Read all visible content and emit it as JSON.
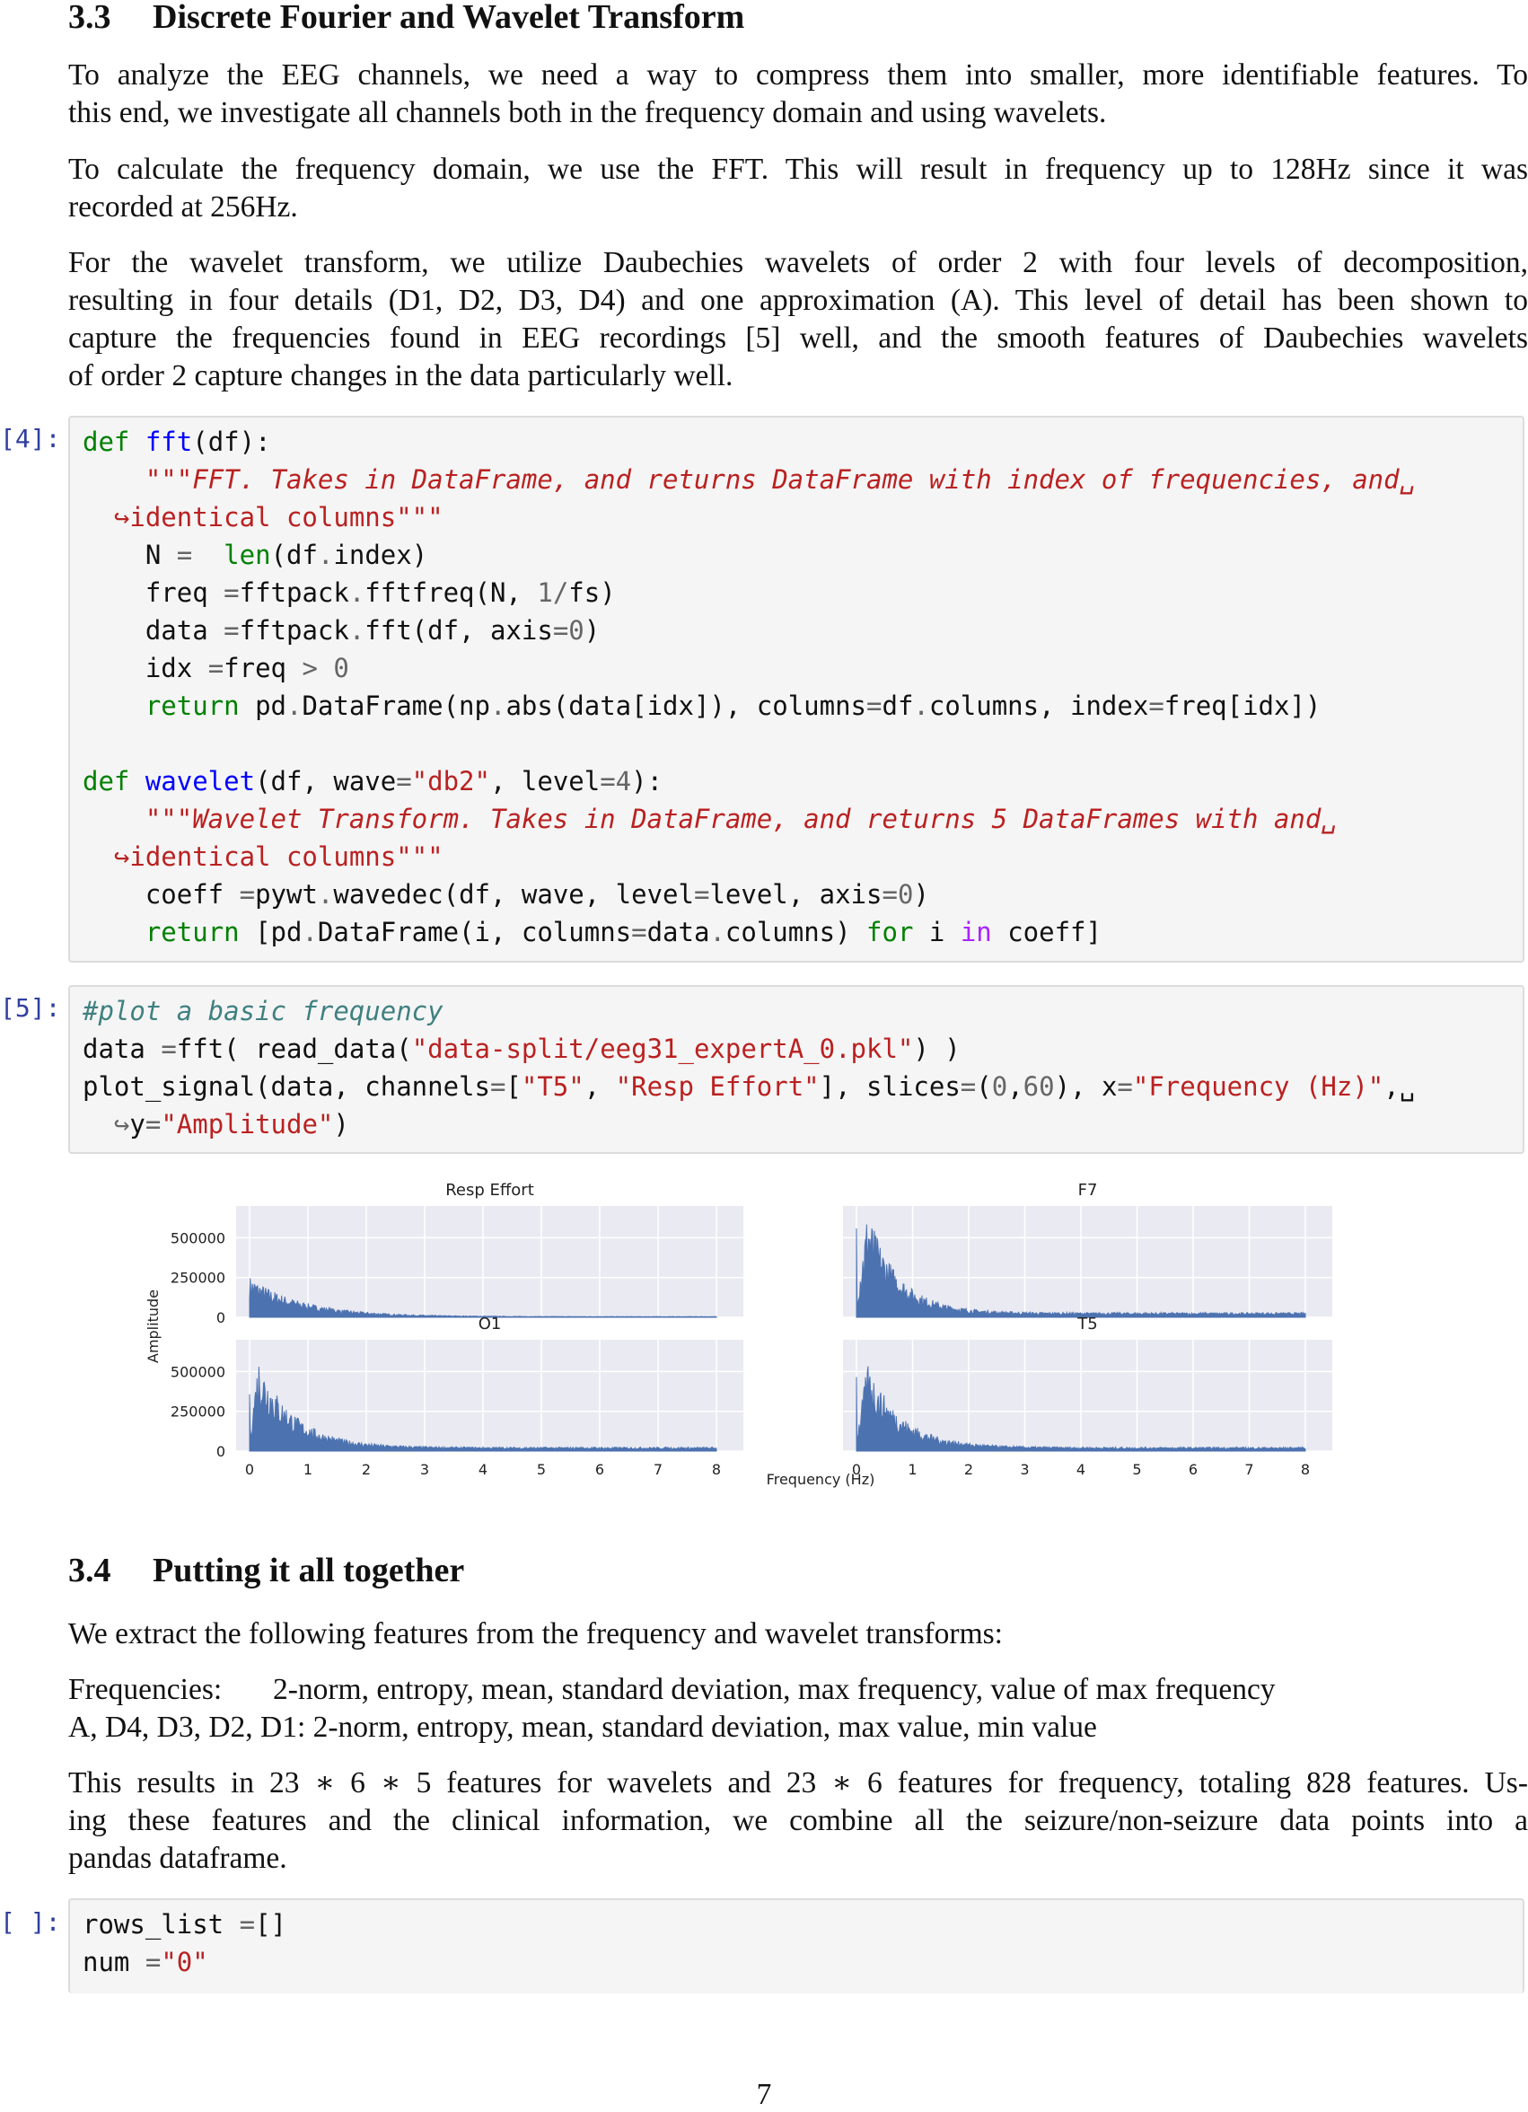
{
  "section_33": {
    "num": "3.3",
    "title": "Discrete Fourier and Wavelet Transform"
  },
  "p1": [
    "To analyze the EEG channels, we need a way to compress them into smaller, more identifiable features. To",
    "this end, we investigate all channels both in the frequency domain and using wavelets."
  ],
  "p2": [
    "To calculate the frequency domain, we use the FFT. This will result in frequency up to 128Hz since it was",
    "recorded at 256Hz."
  ],
  "p3": [
    "For the wavelet transform, we utilize Daubechies wavelets of order 2 with four levels of decomposition,",
    "resulting in four details (D1, D2, D3, D4) and one approximation (A). This level of detail has been shown to",
    "capture the frequencies found in EEG recordings [5] well, and the smooth features of Daubechies wavelets",
    "of order 2 capture changes in the data particularly well."
  ],
  "cell4": {
    "prompt": "[4]:",
    "lines": [
      [
        [
          "kw",
          "def "
        ],
        [
          "fn",
          "fft"
        ],
        [
          "",
          "(df):"
        ]
      ],
      [
        [
          "",
          "    "
        ],
        [
          "doc",
          "\"\"\"FFT. Takes in DataFrame, and returns DataFrame with index of frequencies, and␣"
        ]
      ],
      [
        [
          "",
          "  "
        ],
        [
          "cont",
          "↪identical columns\"\"\""
        ]
      ],
      [
        [
          "",
          "    N "
        ],
        [
          "op",
          "="
        ],
        [
          "",
          "  "
        ],
        [
          "nb",
          "len"
        ],
        [
          "",
          "(df"
        ],
        [
          "op",
          "."
        ],
        [
          "",
          "index)"
        ]
      ],
      [
        [
          "",
          "    freq "
        ],
        [
          "op",
          "="
        ],
        [
          "",
          ""
        ],
        [
          "",
          "fftpack"
        ],
        [
          "op",
          "."
        ],
        [
          "",
          "fftfreq(N, "
        ],
        [
          "numlit",
          "1"
        ],
        [
          "op",
          "/"
        ],
        [
          "",
          "fs)"
        ]
      ],
      [
        [
          "",
          "    data "
        ],
        [
          "op",
          "="
        ],
        [
          "",
          "fftpack"
        ],
        [
          "op",
          "."
        ],
        [
          "",
          "fft(df, axis"
        ],
        [
          "op",
          "="
        ],
        [
          "numlit",
          "0"
        ],
        [
          "",
          ")"
        ]
      ],
      [
        [
          "",
          "    idx "
        ],
        [
          "op",
          "="
        ],
        [
          "",
          ""
        ],
        [
          "",
          "freq "
        ],
        [
          "op",
          ">"
        ],
        [
          "",
          ""
        ],
        [
          "numlit",
          " 0"
        ]
      ],
      [
        [
          "",
          "    "
        ],
        [
          "kw",
          "return "
        ],
        [
          "",
          "pd"
        ],
        [
          "op",
          "."
        ],
        [
          "",
          "DataFrame(np"
        ],
        [
          "op",
          "."
        ],
        [
          "",
          "abs(data[idx]), columns"
        ],
        [
          "op",
          "="
        ],
        [
          "",
          "df"
        ],
        [
          "op",
          "."
        ],
        [
          "",
          "columns, index"
        ],
        [
          "op",
          "="
        ],
        [
          "",
          "freq[idx])"
        ]
      ],
      [
        [
          "",
          ""
        ]
      ],
      [
        [
          "kw",
          "def "
        ],
        [
          "fn",
          "wavelet"
        ],
        [
          "",
          "(df, wave"
        ],
        [
          "op",
          "="
        ],
        [
          "st",
          "\"db2\""
        ],
        [
          "",
          ", level"
        ],
        [
          "op",
          "="
        ],
        [
          "numlit",
          "4"
        ],
        [
          "",
          "):"
        ]
      ],
      [
        [
          "",
          "    "
        ],
        [
          "doc",
          "\"\"\"Wavelet Transform. Takes in DataFrame, and returns 5 DataFrames with and␣"
        ]
      ],
      [
        [
          "",
          "  "
        ],
        [
          "cont",
          "↪identical columns\"\"\""
        ]
      ],
      [
        [
          "",
          "    coeff "
        ],
        [
          "op",
          "="
        ],
        [
          "",
          "pywt"
        ],
        [
          "op",
          "."
        ],
        [
          "",
          "wavedec(df, wave, level"
        ],
        [
          "op",
          "="
        ],
        [
          "",
          "level, axis"
        ],
        [
          "op",
          "="
        ],
        [
          "numlit",
          "0"
        ],
        [
          "",
          ")"
        ]
      ],
      [
        [
          "",
          "    "
        ],
        [
          "kw",
          "return "
        ],
        [
          "",
          "[pd"
        ],
        [
          "op",
          "."
        ],
        [
          "",
          "DataFrame(i, columns"
        ],
        [
          "op",
          "="
        ],
        [
          "",
          "data"
        ],
        [
          "op",
          "."
        ],
        [
          "",
          "columns) "
        ],
        [
          "kw",
          "for "
        ],
        [
          "",
          "i "
        ],
        [
          "kw2",
          "in "
        ],
        [
          "",
          "coeff]"
        ]
      ]
    ]
  },
  "cell5": {
    "prompt": "[5]:",
    "lines": [
      [
        [
          "cm",
          "#plot a basic frequency"
        ]
      ],
      [
        [
          "",
          "data "
        ],
        [
          "op",
          "="
        ],
        [
          "",
          ""
        ],
        [
          "",
          "fft( read_data("
        ],
        [
          "st",
          "\"data-split/eeg31_expertA_0.pkl\""
        ],
        [
          "",
          ") )"
        ]
      ],
      [
        [
          "",
          "plot_signal(data, channels"
        ],
        [
          "op",
          "="
        ],
        [
          "",
          "["
        ],
        [
          "st",
          "\"T5\""
        ],
        [
          "",
          ", "
        ],
        [
          "st",
          "\"Resp Effort\""
        ],
        [
          "",
          "], slices"
        ],
        [
          "op",
          "="
        ],
        [
          "",
          "("
        ],
        [
          "numlit",
          "0"
        ],
        [
          "",
          ","
        ],
        [
          "numlit",
          "60"
        ],
        [
          "",
          "), x"
        ],
        [
          "op",
          "="
        ],
        [
          "st",
          "\"Frequency (Hz)\""
        ],
        [
          "",
          ",␣"
        ]
      ],
      [
        [
          "",
          "  "
        ],
        [
          "op",
          "↪"
        ],
        [
          "",
          "y"
        ],
        [
          "op",
          "="
        ],
        [
          "st",
          "\"Amplitude\""
        ],
        [
          "",
          ")"
        ]
      ]
    ]
  },
  "chart_data": {
    "type": "area",
    "xlabel": "Frequency (Hz)",
    "ylabel": "Amplitude",
    "xlim": [
      0,
      8
    ],
    "ylim": [
      0,
      700000
    ],
    "xticks": [
      "0",
      "1",
      "2",
      "3",
      "4",
      "5",
      "6",
      "7",
      "8"
    ],
    "yticks": [
      "0",
      "250000",
      "500000"
    ],
    "grid": true,
    "series": [
      {
        "name": "Resp Effort",
        "peak": 260000,
        "peak_at": 0.0,
        "floor": 60000,
        "decay": 0.9,
        "tail": 5000
      },
      {
        "name": "F7",
        "peak": 680000,
        "peak_at": 0.2,
        "floor": 110000,
        "decay": 0.55,
        "tail": 30000
      },
      {
        "name": "O1",
        "peak": 600000,
        "peak_at": 0.15,
        "floor": 100000,
        "decay": 0.6,
        "tail": 25000
      },
      {
        "name": "T5",
        "peak": 560000,
        "peak_at": 0.2,
        "floor": 90000,
        "decay": 0.6,
        "tail": 25000
      }
    ]
  },
  "section_34": {
    "num": "3.4",
    "title": "Putting it all together"
  },
  "p4": "We extract the following features from the frequency and wavelet transforms:",
  "features": [
    {
      "label": "Frequencies:",
      "text": "2-norm, entropy, mean, standard deviation, max frequency, value of max frequency"
    },
    {
      "label": "A, D4, D3, D2, D1:",
      "text": "2-norm, entropy, mean, standard deviation, max value, min value"
    }
  ],
  "p5": [
    "This results in 23 ∗ 6 ∗ 5 features for wavelets and 23 ∗ 6 features for frequency, totaling 828 features. Us-",
    "ing these features and the clinical information, we combine all the seizure/non-seizure data points into a",
    "pandas dataframe."
  ],
  "cell_empty": {
    "prompt": "[ ]:",
    "lines": [
      [
        [
          "",
          "rows_list "
        ],
        [
          "op",
          "="
        ],
        [
          "",
          ""
        ],
        [
          "",
          "[]"
        ]
      ],
      [
        [
          "",
          "num "
        ],
        [
          "op",
          "="
        ],
        [
          "",
          ""
        ],
        [
          "st",
          "\"0\""
        ]
      ]
    ]
  },
  "page_number": "7"
}
